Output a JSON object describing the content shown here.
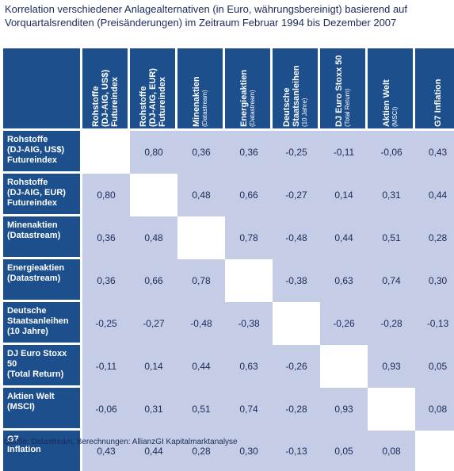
{
  "title_lines": [
    "Korrelation verschiedener Anlagealternativen (in Euro, währungsbereinigt) basierend auf",
    "Vorquartalsrenditen (Preisänderungen) im Zeitraum Februar 1994 bis Dezember 2007"
  ],
  "columns": [
    {
      "main": [
        "Rohstoffe",
        "(DJ-AIG, US$)",
        "Futureindex"
      ],
      "sub": []
    },
    {
      "main": [
        "Rohstoffe",
        "(DJ-AIG, EUR)",
        "Futureindex"
      ],
      "sub": []
    },
    {
      "main": [
        "Minenaktien"
      ],
      "sub": [
        "(Datastream)"
      ]
    },
    {
      "main": [
        "Energieaktien"
      ],
      "sub": [
        "(Datastream)"
      ]
    },
    {
      "main": [
        "Deutsche",
        "Staatsanleihen"
      ],
      "sub": [
        "(10 Jahre)"
      ]
    },
    {
      "main": [
        "DJ Euro Stoxx 50"
      ],
      "sub": [
        "(Total Return)"
      ]
    },
    {
      "main": [
        "Aktien Welt"
      ],
      "sub": [
        "(MSCI)"
      ]
    },
    {
      "main": [
        "G7 Inflation"
      ],
      "sub": []
    }
  ],
  "rows": [
    {
      "label": [
        "Rohstoffe",
        "(DJ-AIG, US$)",
        "Futureindex"
      ],
      "values": [
        "",
        "0,80",
        "0,36",
        "0,36",
        "-0,25",
        "-0,11",
        "-0,06",
        "0,43"
      ]
    },
    {
      "label": [
        "Rohstoffe",
        "(DJ-AIG, EUR)",
        "Futureindex"
      ],
      "values": [
        "0,80",
        "",
        "0,48",
        "0,66",
        "-0,27",
        "0,14",
        "0,31",
        "0,44"
      ]
    },
    {
      "label": [
        "Minenaktien",
        "(Datastream)"
      ],
      "values": [
        "0,36",
        "0,48",
        "",
        "0,78",
        "-0,48",
        "0,44",
        "0,51",
        "0,28"
      ]
    },
    {
      "label": [
        "Energieaktien",
        "(Datastream)"
      ],
      "values": [
        "0,36",
        "0,66",
        "0,78",
        "",
        "-0,38",
        "0,63",
        "0,74",
        "0,30"
      ]
    },
    {
      "label": [
        "Deutsche",
        "Staatsanleihen",
        "(10 Jahre)"
      ],
      "values": [
        "-0,25",
        "-0,27",
        "-0,48",
        "-0,38",
        "",
        "-0,26",
        "-0,28",
        "-0,13"
      ]
    },
    {
      "label": [
        "DJ Euro Stoxx 50",
        "(Total Return)"
      ],
      "values": [
        "-0,11",
        "0,14",
        "0,44",
        "0,63",
        "-0,26",
        "",
        "0,93",
        "0,05"
      ]
    },
    {
      "label": [
        "Aktien Welt",
        "(MSCI)"
      ],
      "values": [
        "-0,06",
        "0,31",
        "0,51",
        "0,74",
        "-0,28",
        "0,93",
        "",
        "0,08"
      ]
    },
    {
      "label": [
        "G7",
        "Inflation"
      ],
      "values": [
        "0,43",
        "0,44",
        "0,28",
        "0,30",
        "-0,13",
        "0,05",
        "0,08",
        ""
      ]
    }
  ],
  "colors": {
    "header": "#1d4f8c",
    "cell": "#c5cde6",
    "diagonal": "#ffffff"
  },
  "source": "Quelle: Datastream, Berechnungen: AllianzGI Kapitalmarktanalyse"
}
